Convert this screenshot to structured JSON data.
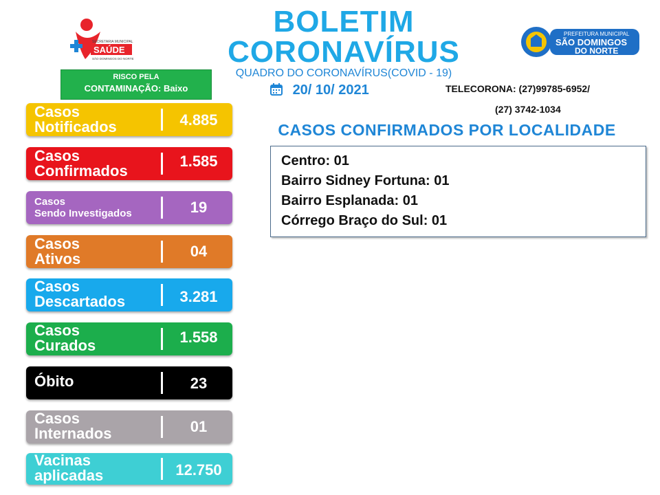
{
  "header": {
    "title_line1": "BOLETIM",
    "title_line2": "CORONAVÍRUS",
    "subtitle": "QUADRO DO CORONAVÍRUS(COVID - 19)",
    "date": "20/ 10/ 2021"
  },
  "risk": {
    "line1": "RISCO PELA",
    "line2": "CONTAMINAÇÃO: Baixo"
  },
  "telecorona": {
    "line1": "TELECORONA: (27)99785-6952/",
    "line2": "(27) 3742-1034"
  },
  "logos": {
    "saude": {
      "org": "SECRETARIA MUNICIPAL",
      "name": "SAÚDE",
      "place": "SÃO DOMINGOS DO NORTE"
    },
    "prefeitura": {
      "org": "PREFEITURA MUNICIPAL",
      "name_line1": "SÃO DOMINGOS",
      "name_line2": "DO NORTE"
    }
  },
  "localidade": {
    "title": "CASOS CONFIRMADOS POR LOCALIDADE",
    "items": [
      "Centro: 01",
      "Bairro Sidney Fortuna: 01",
      "Bairro Esplanada: 01",
      "Córrego Braço do Sul: 01"
    ]
  },
  "stats": [
    {
      "line1": "Casos",
      "line2": "Notificados",
      "value": "4.885",
      "color": "#f5c400"
    },
    {
      "line1": "Casos",
      "line2": "Confirmados",
      "value": "1.585",
      "color": "#e8141c"
    },
    {
      "line1": "Casos",
      "line2": "Sendo Investigados",
      "value": "19",
      "color": "#a566c0"
    },
    {
      "line1": "Casos",
      "line2": "Ativos",
      "value": "04",
      "color": "#e07a28"
    },
    {
      "line1": "Casos",
      "line2": "Descartados",
      "value": "3.281",
      "color": "#18a9ec"
    },
    {
      "line1": "Casos",
      "line2": "Curados",
      "value": "1.558",
      "color": "#1cae4c"
    },
    {
      "line1": "Óbito",
      "line2": "",
      "value": "23",
      "color": "#000000"
    },
    {
      "line1": "Casos",
      "line2": "Internados",
      "value": "01",
      "color": "#aaa4a9"
    },
    {
      "line1": "Vacinas",
      "line2": "aplicadas",
      "value": "12.750",
      "color": "#3ecfd4"
    }
  ],
  "icons": {
    "date_icon": "calendar-icon"
  }
}
